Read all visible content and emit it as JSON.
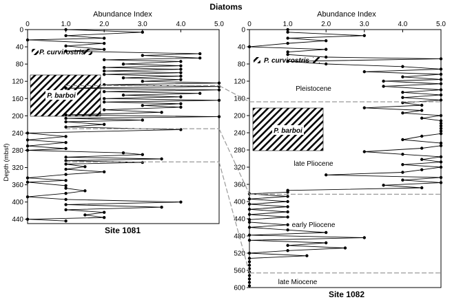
{
  "figure_title": "Diatoms",
  "y_axis_label": "Depth (mbsf)",
  "chart_data": [
    {
      "type": "line",
      "site": "Site 1081",
      "xlabel": "Abundance Index",
      "ylabel": "Depth (mbsf)",
      "xlim": [
        0,
        5
      ],
      "ylim": [
        0,
        450
      ],
      "x_ticks": [
        0,
        1,
        2,
        3,
        4,
        5
      ],
      "x_tick_labels": [
        "0",
        "1.0",
        "2.0",
        "3.0",
        "4.0",
        "5.0"
      ],
      "y_ticks": [
        0,
        40,
        80,
        120,
        160,
        200,
        240,
        280,
        320,
        360,
        400,
        440
      ],
      "depth": [
        0,
        6,
        14,
        20,
        24,
        32,
        38,
        46,
        50,
        56,
        60,
        66,
        70,
        74,
        80,
        84,
        88,
        92,
        96,
        100,
        104,
        108,
        112,
        116,
        120,
        124,
        128,
        132,
        136,
        140,
        144,
        148,
        152,
        156,
        160,
        164,
        168,
        172,
        176,
        180,
        186,
        192,
        198,
        202,
        206,
        210,
        214,
        220,
        226,
        232,
        240,
        248,
        256,
        262,
        270,
        276,
        280,
        286,
        290,
        296,
        300,
        304,
        308,
        312,
        318,
        324,
        330,
        336,
        344,
        350,
        354,
        362,
        368,
        374,
        380,
        388,
        394,
        400,
        406,
        412,
        418,
        424,
        430,
        436,
        440,
        444
      ],
      "abundance": [
        1,
        3,
        1,
        2,
        0,
        2,
        1,
        2,
        1,
        4.5,
        3,
        4.5,
        2,
        4,
        2.5,
        4,
        2,
        4,
        2,
        4,
        2,
        4,
        2.5,
        4,
        3,
        5,
        2,
        5,
        1,
        5,
        2,
        4.5,
        2.5,
        4,
        2,
        5,
        2,
        4,
        3,
        4,
        2,
        3.5,
        1,
        5,
        1,
        3,
        1,
        2,
        1,
        4,
        0,
        1,
        0,
        1,
        0,
        1,
        0,
        2.5,
        3,
        1,
        3.5,
        1,
        3,
        1,
        1.5,
        1,
        2,
        1,
        0,
        1,
        0,
        1,
        1,
        1.5,
        1,
        0,
        1,
        4,
        1,
        3.5,
        1,
        2,
        1.5,
        2,
        0,
        1
      ],
      "annotations": [
        "P. curvirostris",
        "P. barboi"
      ]
    },
    {
      "type": "line",
      "site": "Site 1082",
      "xlabel": "Abundance Index",
      "xlim": [
        0,
        5
      ],
      "ylim": [
        0,
        600
      ],
      "x_ticks": [
        0,
        1,
        2,
        3,
        4,
        5
      ],
      "x_tick_labels": [
        "0",
        "1.0",
        "2.0",
        "3.0",
        "4.0",
        "5.0"
      ],
      "y_ticks": [
        0,
        40,
        80,
        120,
        160,
        200,
        240,
        280,
        320,
        360,
        400,
        440,
        480,
        520,
        560,
        600
      ],
      "depth": [
        0,
        6,
        14,
        20,
        26,
        32,
        40,
        46,
        52,
        58,
        64,
        68,
        74,
        80,
        86,
        92,
        98,
        104,
        110,
        116,
        120,
        126,
        132,
        140,
        146,
        152,
        158,
        164,
        170,
        176,
        182,
        188,
        194,
        200,
        206,
        212,
        218,
        224,
        230,
        236,
        242,
        248,
        256,
        264,
        270,
        276,
        284,
        290,
        296,
        302,
        308,
        314,
        320,
        326,
        332,
        338,
        344,
        350,
        356,
        362,
        368,
        374,
        378,
        382,
        388,
        394,
        400,
        406,
        412,
        418,
        424,
        430,
        436,
        442,
        448,
        454,
        460,
        466,
        472,
        478,
        484,
        490,
        496,
        502,
        508,
        514,
        520,
        526,
        532,
        540,
        548,
        556,
        564,
        572,
        580,
        588,
        596
      ],
      "abundance": [
        1,
        1,
        3,
        1,
        2,
        1,
        0,
        2,
        1,
        1,
        2,
        5,
        1,
        2,
        4,
        5,
        3,
        5,
        4,
        5,
        3.5,
        5,
        3.5,
        5,
        4,
        5,
        4,
        5,
        4,
        4.5,
        3,
        4.5,
        4,
        5,
        4.5,
        5,
        5,
        5,
        5,
        5,
        5,
        4.5,
        4,
        5,
        5,
        4.5,
        3,
        4,
        5,
        4.5,
        5,
        4,
        5,
        4.5,
        4,
        2,
        5,
        4,
        5,
        3.5,
        4.5,
        1,
        1,
        0,
        1,
        0,
        1,
        0,
        1,
        0,
        1,
        0,
        1,
        0,
        0,
        1,
        0,
        1,
        2,
        0,
        3,
        0,
        2,
        1,
        2.5,
        1,
        0,
        1.5,
        0,
        0,
        0,
        0,
        0,
        0,
        0,
        0,
        0
      ],
      "annotations": [
        "P. curvirostris",
        "P. barboi"
      ],
      "stage_labels": [
        "Pleistocene",
        "late Pliocene",
        "early Pliocene",
        "late Miocene"
      ]
    }
  ]
}
